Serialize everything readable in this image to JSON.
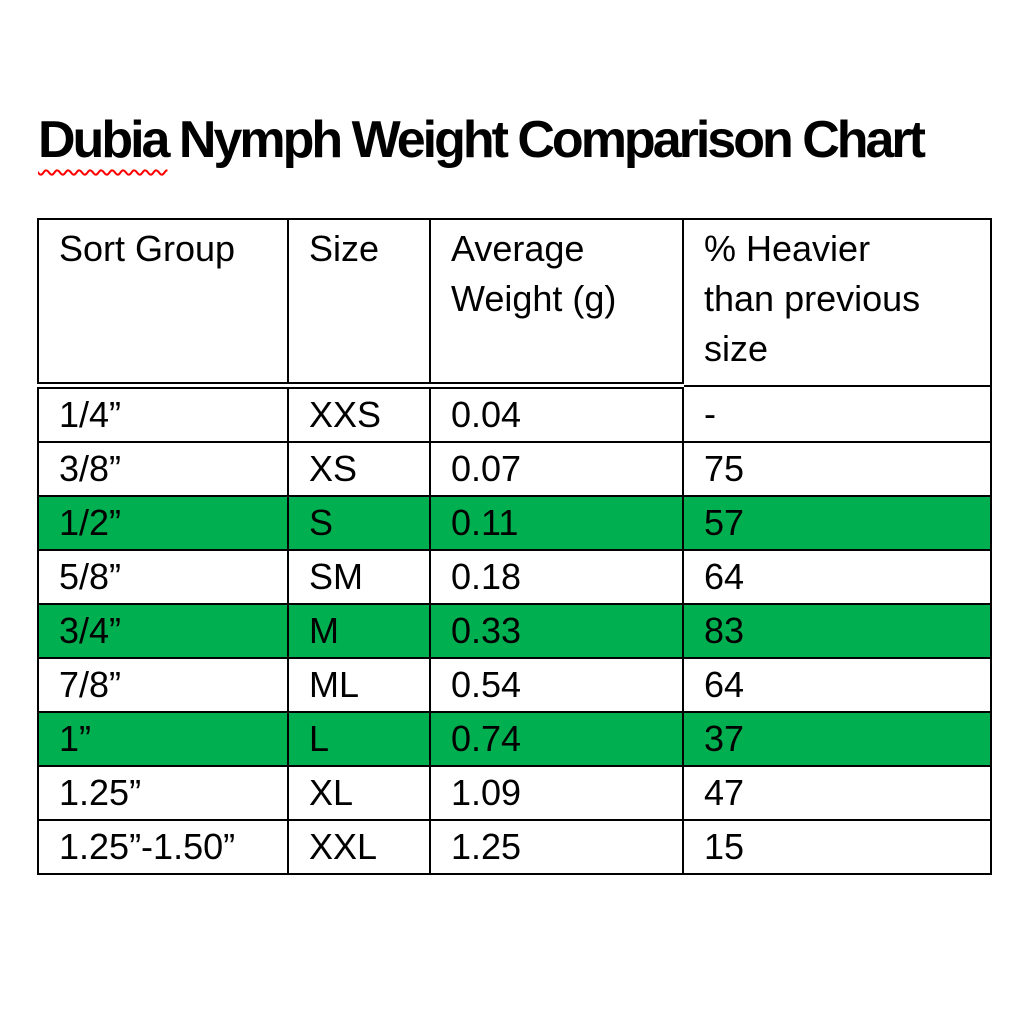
{
  "document": {
    "title": {
      "misspelled_word": "Dubia",
      "rest": " Nymph Weight Comparison Chart"
    }
  },
  "colors": {
    "page_background": "#FFFFFF",
    "text": "#000000",
    "table_border": "#000000",
    "row_highlight_green": "#00B050",
    "spellcheck_wave_red": "#FF0000"
  },
  "table": {
    "headers": [
      "Sort Group",
      "Size",
      "Average Weight (g)",
      "% Heavier than previous size"
    ],
    "rows": [
      {
        "sort_group": "1/4”",
        "size": "XXS",
        "avg_weight_g": "0.04",
        "pct_heavier": "-",
        "highlighted": false
      },
      {
        "sort_group": "3/8”",
        "size": "XS",
        "avg_weight_g": "0.07",
        "pct_heavier": "75",
        "highlighted": false
      },
      {
        "sort_group": "1/2”",
        "size": "S",
        "avg_weight_g": "0.11",
        "pct_heavier": "57",
        "highlighted": true
      },
      {
        "sort_group": "5/8”",
        "size": "SM",
        "avg_weight_g": "0.18",
        "pct_heavier": "64",
        "highlighted": false
      },
      {
        "sort_group": "3/4”",
        "size": "M",
        "avg_weight_g": "0.33",
        "pct_heavier": "83",
        "highlighted": true
      },
      {
        "sort_group": "7/8”",
        "size": "ML",
        "avg_weight_g": "0.54",
        "pct_heavier": "64",
        "highlighted": false
      },
      {
        "sort_group": "1”",
        "size": "L",
        "avg_weight_g": "0.74",
        "pct_heavier": "37",
        "highlighted": true
      },
      {
        "sort_group": "1.25”",
        "size": "XL",
        "avg_weight_g": "1.09",
        "pct_heavier": "47",
        "highlighted": false
      },
      {
        "sort_group": "1.25”-1.50”",
        "size": "XXL",
        "avg_weight_g": "1.25",
        "pct_heavier": "15",
        "highlighted": false
      }
    ]
  },
  "chart_data": {
    "type": "table",
    "title": "Dubia Nymph Weight Comparison Chart",
    "columns": [
      "Sort Group",
      "Size",
      "Average Weight (g)",
      "% Heavier than previous size"
    ],
    "rows": [
      [
        "1/4”",
        "XXS",
        0.04,
        "-"
      ],
      [
        "3/8”",
        "XS",
        0.07,
        75
      ],
      [
        "1/2”",
        "S",
        0.11,
        57
      ],
      [
        "5/8”",
        "SM",
        0.18,
        64
      ],
      [
        "3/4”",
        "M",
        0.33,
        83
      ],
      [
        "7/8”",
        "ML",
        0.54,
        64
      ],
      [
        "1”",
        "L",
        0.74,
        37
      ],
      [
        "1.25”",
        "XL",
        1.09,
        47
      ],
      [
        "1.25”-1.50”",
        "XXL",
        1.25,
        15
      ]
    ],
    "highlighted_row_indices": [
      2,
      4,
      6
    ]
  }
}
